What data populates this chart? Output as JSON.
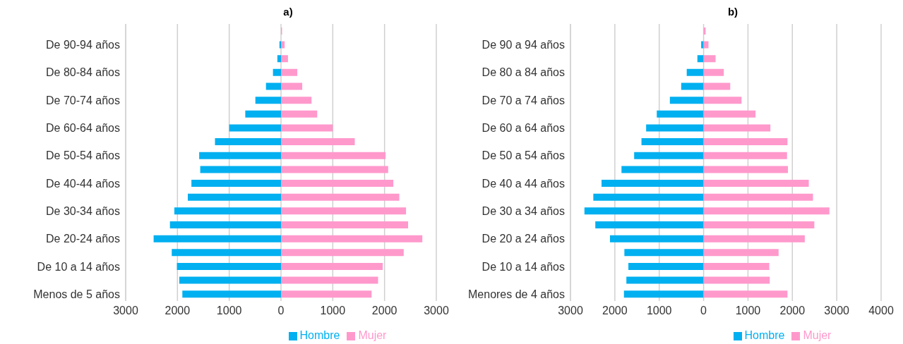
{
  "chart_data": [
    {
      "type": "bar",
      "title": "a)",
      "orientation": "horizontal",
      "stacked": true,
      "grid": "x",
      "legend": "bottom",
      "categories": [
        null,
        "De 90-94 años",
        null,
        "De 80-84 años",
        null,
        "De 70-74 años",
        null,
        "De 60-64 años",
        null,
        "De 50-54 años",
        null,
        "De 40-44 años",
        null,
        "De 30-34 años",
        null,
        "De 20-24 años",
        null,
        "De 10 a 14 años",
        null,
        "Menos de 5 años"
      ],
      "xlim": [
        -3000,
        3000
      ],
      "xticks": [
        {
          "value": -3000,
          "label": "3000"
        },
        {
          "value": -2000,
          "label": "2000"
        },
        {
          "value": -1000,
          "label": "1000"
        },
        0,
        1000,
        2000,
        3000
      ],
      "series": [
        {
          "name": "Hombre",
          "color": "#00b0f0",
          "values": [
            null,
            -30,
            -70,
            -155,
            -290,
            -495,
            -690,
            -1000,
            -1275,
            -1580,
            -1560,
            -1730,
            -1800,
            -2060,
            -2145,
            -2460,
            -2110,
            -2010,
            -1965,
            -1905
          ]
        },
        {
          "name": "Mujer",
          "color": "#ff99cc",
          "values": [
            20,
            70,
            135,
            315,
            410,
            590,
            700,
            1000,
            1425,
            2020,
            2070,
            2170,
            2285,
            2415,
            2455,
            2730,
            2370,
            1965,
            1875,
            1750
          ]
        }
      ]
    },
    {
      "type": "bar",
      "title": "b)",
      "orientation": "horizontal",
      "stacked": true,
      "grid": "x",
      "legend": "bottom",
      "categories": [
        null,
        "De 90 a 94 años",
        null,
        "De 80 a 84 años",
        null,
        "De 70 a 74 años",
        null,
        "De 60 a 64 años",
        null,
        "De 50 a 54 años",
        null,
        "De 40 a 44 años",
        null,
        "De 30 a 34 años",
        null,
        "De 20 a 24 años",
        null,
        "De 10 a 14 años",
        null,
        "Menores de 4 años"
      ],
      "xlim": [
        -3000,
        4000
      ],
      "xticks": [
        {
          "value": -3000,
          "label": "3000"
        },
        {
          "value": -2000,
          "label": "2000"
        },
        {
          "value": -1000,
          "label": "1000"
        },
        0,
        1000,
        2000,
        3000,
        4000
      ],
      "series": [
        {
          "name": "Hombre",
          "color": "#00b0f0",
          "values": [
            null,
            -55,
            -140,
            -380,
            -505,
            -760,
            -1055,
            -1295,
            -1400,
            -1565,
            -1850,
            -2300,
            -2485,
            -2685,
            -2440,
            -2110,
            -1785,
            -1695,
            -1740,
            -1795
          ]
        },
        {
          "name": "Mujer",
          "color": "#ff99cc",
          "values": [
            45,
            110,
            270,
            455,
            600,
            855,
            1170,
            1505,
            1890,
            1880,
            1900,
            2370,
            2465,
            2835,
            2495,
            2280,
            1690,
            1480,
            1490,
            1890
          ]
        }
      ]
    }
  ]
}
